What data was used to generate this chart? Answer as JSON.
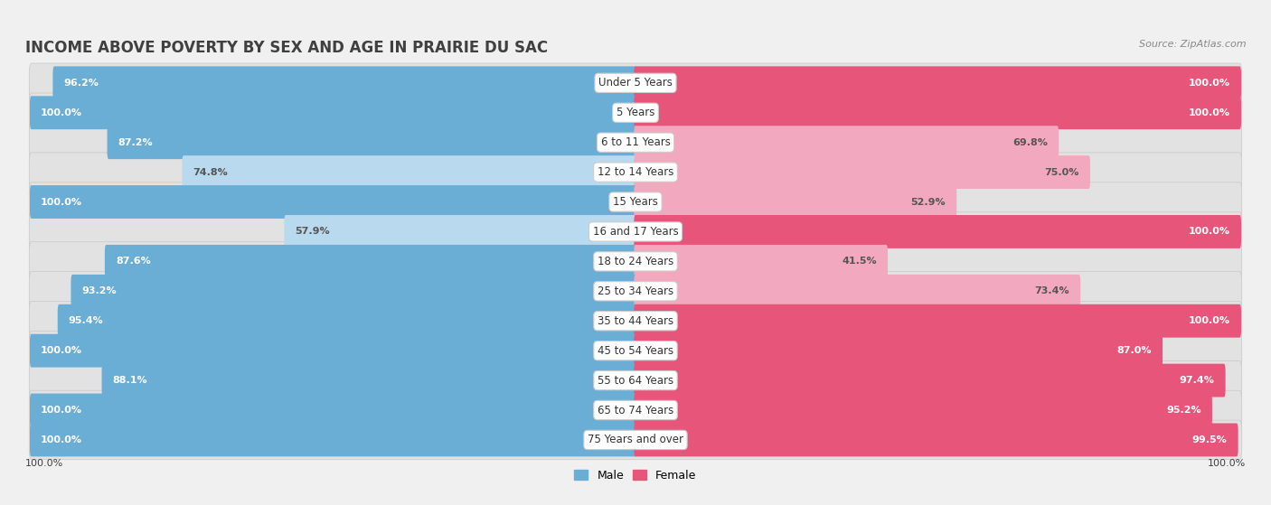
{
  "title": "INCOME ABOVE POVERTY BY SEX AND AGE IN PRAIRIE DU SAC",
  "source": "Source: ZipAtlas.com",
  "categories": [
    "Under 5 Years",
    "5 Years",
    "6 to 11 Years",
    "12 to 14 Years",
    "15 Years",
    "16 and 17 Years",
    "18 to 24 Years",
    "25 to 34 Years",
    "35 to 44 Years",
    "45 to 54 Years",
    "55 to 64 Years",
    "65 to 74 Years",
    "75 Years and over"
  ],
  "male_values": [
    96.2,
    100.0,
    87.2,
    74.8,
    100.0,
    57.9,
    87.6,
    93.2,
    95.4,
    100.0,
    88.1,
    100.0,
    100.0
  ],
  "female_values": [
    100.0,
    100.0,
    69.8,
    75.0,
    52.9,
    100.0,
    41.5,
    73.4,
    100.0,
    87.0,
    97.4,
    95.2,
    99.5
  ],
  "male_color_dark": "#6aaed6",
  "male_color_light": "#b8d9ee",
  "female_color_dark": "#e8557a",
  "female_color_light": "#f2a8be",
  "row_bg_color": "#e8e8e8",
  "bg_color": "#f0f0f0",
  "title_color": "#404040",
  "label_color": "#404040",
  "source_color": "#888888",
  "title_fontsize": 12,
  "label_fontsize": 8.5,
  "value_fontsize": 8,
  "legend_fontsize": 9
}
